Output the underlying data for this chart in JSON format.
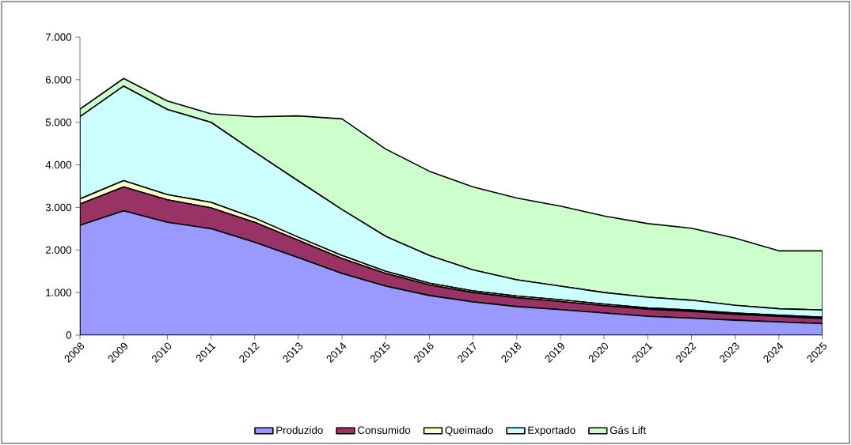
{
  "chart_data": {
    "type": "area",
    "stacked": true,
    "categories": [
      "2008",
      "2009",
      "2010",
      "2011",
      "2012",
      "2013",
      "2014",
      "2015",
      "2016",
      "2017",
      "2018",
      "2019",
      "2020",
      "2021",
      "2022",
      "2023",
      "2024",
      "2025"
    ],
    "series": [
      {
        "name": "Produzido",
        "color": "#9999ff",
        "values": [
          2580,
          2920,
          2650,
          2500,
          2180,
          1820,
          1450,
          1150,
          930,
          780,
          670,
          600,
          520,
          440,
          400,
          350,
          310,
          270
        ]
      },
      {
        "name": "Consumido",
        "color": "#993366",
        "values": [
          500,
          560,
          530,
          490,
          470,
          410,
          350,
          300,
          250,
          220,
          210,
          190,
          170,
          170,
          160,
          140,
          130,
          120
        ]
      },
      {
        "name": "Queimado",
        "color": "#ffffcc",
        "values": [
          120,
          150,
          120,
          130,
          100,
          70,
          70,
          50,
          40,
          40,
          40,
          40,
          40,
          30,
          30,
          30,
          30,
          30
        ]
      },
      {
        "name": "Exportado",
        "color": "#ccffff",
        "values": [
          1930,
          2220,
          2000,
          1880,
          1550,
          1320,
          1080,
          820,
          650,
          490,
          380,
          320,
          270,
          250,
          230,
          180,
          150,
          170
        ]
      },
      {
        "name": "Gás Lift",
        "color": "#ccffcc",
        "values": [
          180,
          180,
          200,
          200,
          830,
          1530,
          2130,
          2050,
          1980,
          1950,
          1920,
          1880,
          1800,
          1730,
          1690,
          1580,
          1360,
          1390
        ]
      }
    ],
    "ylim": [
      0,
      7000
    ],
    "yticks": [
      0,
      {
        "value": 1000,
        "label": "1.000"
      },
      {
        "value": 2000,
        "label": "2.000"
      },
      {
        "value": 3000,
        "label": "3.000"
      },
      {
        "value": 4000,
        "label": "4.000"
      },
      {
        "value": 5000,
        "label": "5.000"
      },
      {
        "value": 6000,
        "label": "6.000"
      },
      {
        "value": 7000,
        "label": "7.000"
      }
    ],
    "grid": false,
    "legend": "bottom"
  }
}
